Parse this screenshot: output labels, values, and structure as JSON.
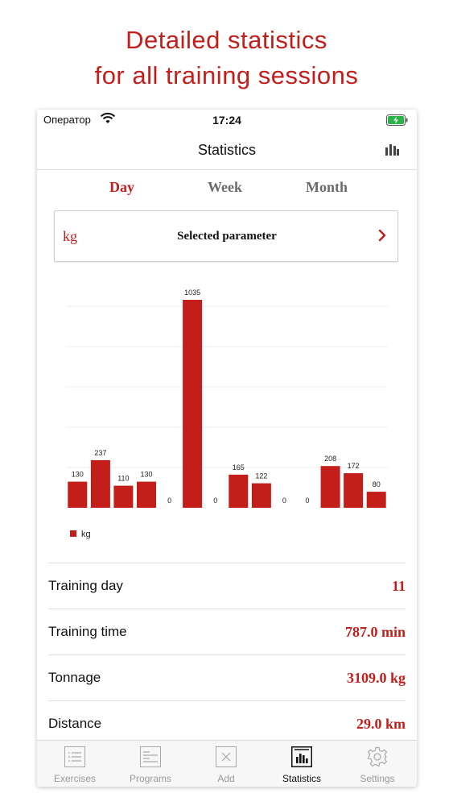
{
  "headline": {
    "line1": "Detailed statistics",
    "line2": "for all training sessions"
  },
  "status_bar": {
    "carrier": "Оператор",
    "time": "17:24"
  },
  "nav": {
    "title": "Statistics"
  },
  "segments": {
    "day": "Day",
    "week": "Week",
    "month": "Month",
    "selected": "Day"
  },
  "parameter": {
    "unit": "kg",
    "label": "Selected parameter"
  },
  "chart_data": {
    "type": "bar",
    "values": [
      130,
      237,
      110,
      130,
      0,
      1035,
      0,
      165,
      122,
      0,
      0,
      208,
      172,
      80
    ],
    "ylim": [
      0,
      1035
    ],
    "grid": true,
    "legend": {
      "label": "kg",
      "position": "bottom-left"
    },
    "series": [
      {
        "name": "kg",
        "values": [
          130,
          237,
          110,
          130,
          0,
          1035,
          0,
          165,
          122,
          0,
          0,
          208,
          172,
          80
        ]
      }
    ],
    "color": "#c41e1b"
  },
  "stats": [
    {
      "label": "Training day",
      "value": "11"
    },
    {
      "label": "Training time",
      "value": "787.0 min"
    },
    {
      "label": "Tonnage",
      "value": "3109.0 kg"
    },
    {
      "label": "Distance",
      "value": "29.0 km"
    }
  ],
  "tabs": [
    {
      "label": "Exercises",
      "icon": "list-icon"
    },
    {
      "label": "Programs",
      "icon": "programs-icon"
    },
    {
      "label": "Add",
      "icon": "add-icon"
    },
    {
      "label": "Statistics",
      "icon": "statistics-icon"
    },
    {
      "label": "Settings",
      "icon": "gear-icon"
    }
  ],
  "active_tab": "Statistics",
  "colors": {
    "accent": "#c41e1b",
    "battery": "#2bb34a"
  }
}
